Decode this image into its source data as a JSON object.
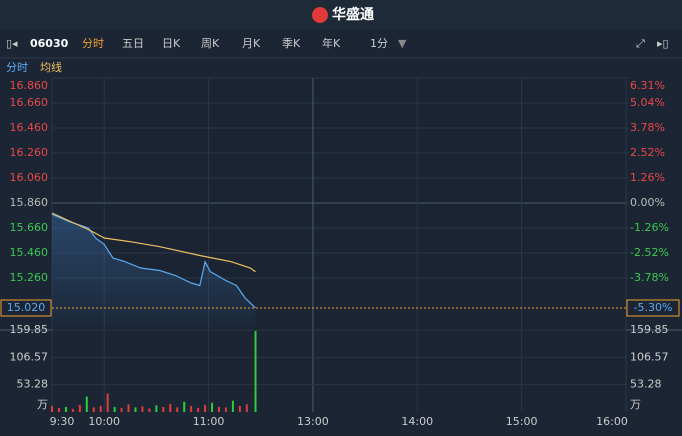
{
  "header": {
    "brand": "华盛通"
  },
  "toolbar": {
    "code": "06030",
    "tabs": [
      "分时",
      "五日",
      "日K",
      "周K",
      "月K",
      "季K",
      "年K",
      "1分"
    ],
    "active_tab": 0
  },
  "chart_data": [
    {
      "type": "line",
      "xlim": [
        "9:30",
        "16:00"
      ],
      "xticks": [
        "9:30",
        "10:00",
        "11:00",
        "13:00",
        "14:00",
        "15:00",
        "16:00"
      ],
      "ylim": [
        14.86,
        16.86
      ],
      "yticks": [
        {
          "value": 16.86,
          "label": "16.860"
        },
        {
          "value": 16.66,
          "label": "16.660"
        },
        {
          "value": 16.46,
          "label": "16.460"
        },
        {
          "value": 16.26,
          "label": "16.260"
        },
        {
          "value": 16.06,
          "label": "16.060"
        },
        {
          "value": 15.86,
          "label": "15.860"
        },
        {
          "value": 15.66,
          "label": "15.660"
        },
        {
          "value": 15.46,
          "label": "15.460"
        },
        {
          "value": 15.26,
          "label": "15.260"
        }
      ],
      "y2lim": [
        -6.31,
        6.31
      ],
      "y2ticks": [
        {
          "value": 6.31,
          "label": "6.31%"
        },
        {
          "value": 5.04,
          "label": "5.04%"
        },
        {
          "value": 3.78,
          "label": "3.78%"
        },
        {
          "value": 2.52,
          "label": "2.52%"
        },
        {
          "value": 1.26,
          "label": "1.26%"
        },
        {
          "value": 0,
          "label": "0.00%"
        },
        {
          "value": -1.26,
          "label": "-1.26%"
        },
        {
          "value": -2.52,
          "label": "-2.52%"
        },
        {
          "value": -3.78,
          "label": "-3.78%"
        }
      ],
      "last_price": {
        "value": 15.02,
        "label": "15.020"
      },
      "last_change": {
        "value": -5.3,
        "label": "-5.30%"
      },
      "series": [
        {
          "name": "分时",
          "color": "#5aaaf0",
          "x": [
            "9:30",
            "9:40",
            "9:51",
            "9:55",
            "10:00",
            "10:05",
            "10:12",
            "10:21",
            "10:32",
            "10:41",
            "10:50",
            "10:55",
            "10:58",
            "11:01",
            "11:10",
            "11:16",
            "11:21",
            "11:27"
          ],
          "values": [
            15.77,
            15.71,
            15.66,
            15.58,
            15.53,
            15.42,
            15.39,
            15.34,
            15.32,
            15.28,
            15.22,
            15.2,
            15.39,
            15.31,
            15.24,
            15.2,
            15.1,
            15.02
          ]
        },
        {
          "name": "均线",
          "color": "#f0c060",
          "x": [
            "9:30",
            "9:52",
            "10:00",
            "10:15",
            "10:32",
            "10:55",
            "11:13",
            "11:24",
            "11:27"
          ],
          "values": [
            15.78,
            15.64,
            15.58,
            15.55,
            15.51,
            15.44,
            15.39,
            15.34,
            15.31
          ]
        }
      ]
    },
    {
      "type": "bar",
      "ylim": [
        0,
        159.85
      ],
      "yticks": [
        159.85,
        106.57,
        53.28
      ],
      "y_unit": "万",
      "x": [
        "9:30",
        "9:34",
        "9:38",
        "9:42",
        "9:46",
        "9:50",
        "9:54",
        "9:58",
        "10:02",
        "10:06",
        "10:10",
        "10:14",
        "10:18",
        "10:22",
        "10:26",
        "10:30",
        "10:34",
        "10:38",
        "10:42",
        "10:46",
        "10:50",
        "10:54",
        "10:58",
        "11:02",
        "11:06",
        "11:10",
        "11:14",
        "11:18",
        "11:22",
        "11:27"
      ],
      "values": [
        12,
        8,
        10,
        6,
        14,
        30,
        9,
        12,
        36,
        10,
        8,
        15,
        9,
        11,
        7,
        13,
        10,
        16,
        9,
        20,
        12,
        8,
        14,
        18,
        10,
        9,
        22,
        12,
        15,
        158
      ],
      "colors": [
        "#e03c3c",
        "#e03c3c",
        "#2ecc40",
        "#e03c3c",
        "#e03c3c",
        "#2ecc40",
        "#e03c3c",
        "#e03c3c",
        "#e03c3c",
        "#2ecc40",
        "#e03c3c",
        "#e03c3c",
        "#2ecc40",
        "#e03c3c",
        "#e03c3c",
        "#2ecc40",
        "#e03c3c",
        "#e03c3c",
        "#e03c3c",
        "#2ecc40",
        "#e03c3c",
        "#e03c3c",
        "#e03c3c",
        "#2ecc40",
        "#e03c3c",
        "#e03c3c",
        "#2ecc40",
        "#e03c3c",
        "#e03c3c",
        "#2ecc40"
      ]
    }
  ]
}
